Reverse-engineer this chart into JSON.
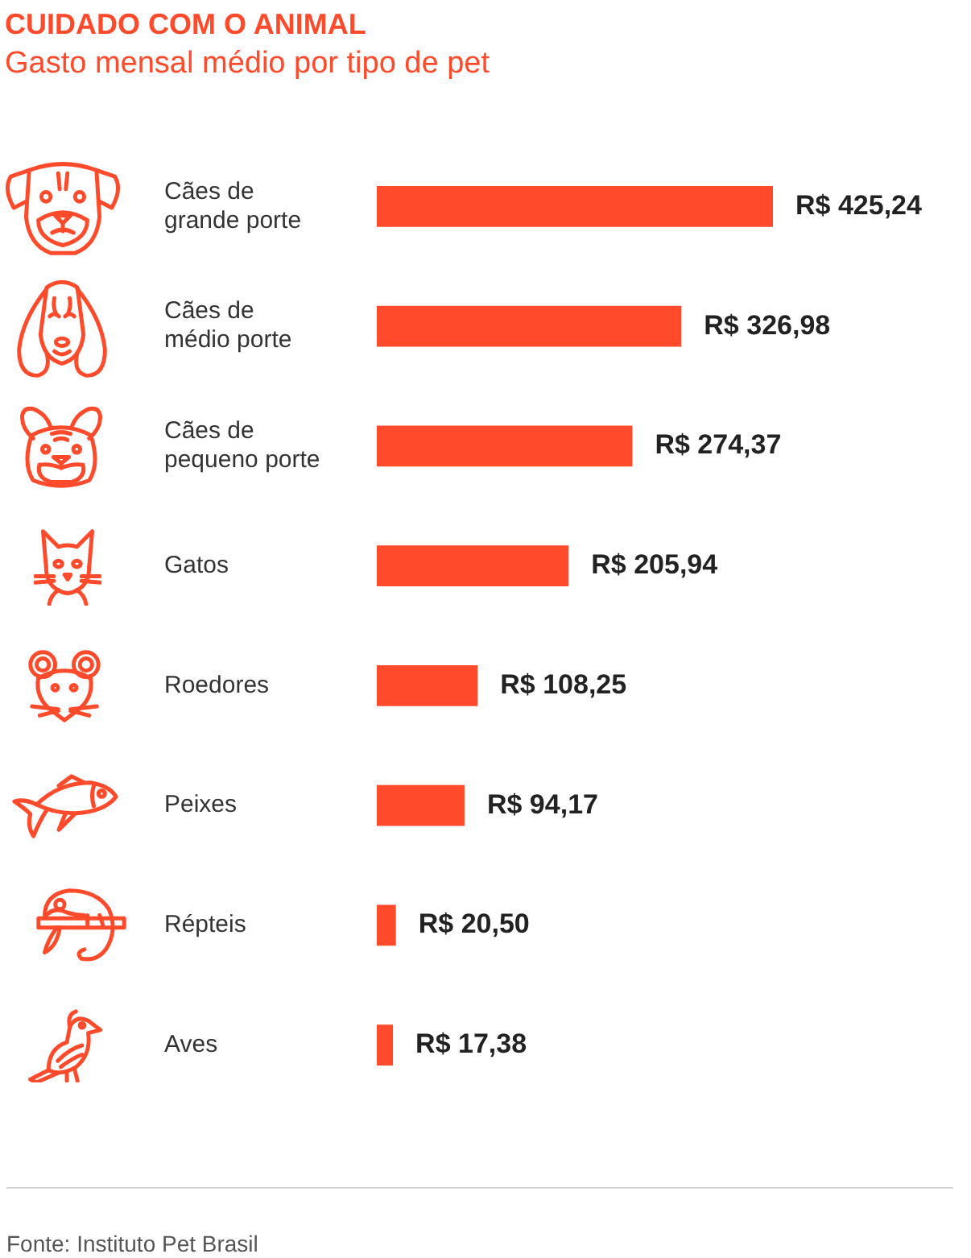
{
  "chart_data": {
    "type": "bar",
    "orientation": "horizontal",
    "title": "CUIDADO COM O ANIMAL",
    "subtitle": "Gasto mensal médio por tipo de pet",
    "categories": [
      "Cães de grande porte",
      "Cães de médio porte",
      "Cães de pequeno porte",
      "Gatos",
      "Roedores",
      "Peixes",
      "Répteis",
      "Aves"
    ],
    "values": [
      425.24,
      326.98,
      274.37,
      205.94,
      108.25,
      94.17,
      20.5,
      17.38
    ],
    "value_labels": [
      "R$ 425,24",
      "R$ 326,98",
      "R$ 274,37",
      "R$ 205,94",
      "R$ 108,25",
      "R$ 94,17",
      "R$ 20,50",
      "R$ 17,38"
    ],
    "color": "#ff4b2b",
    "annotations": [
      "Fonte: Instituto Pet Brasil"
    ]
  }
}
